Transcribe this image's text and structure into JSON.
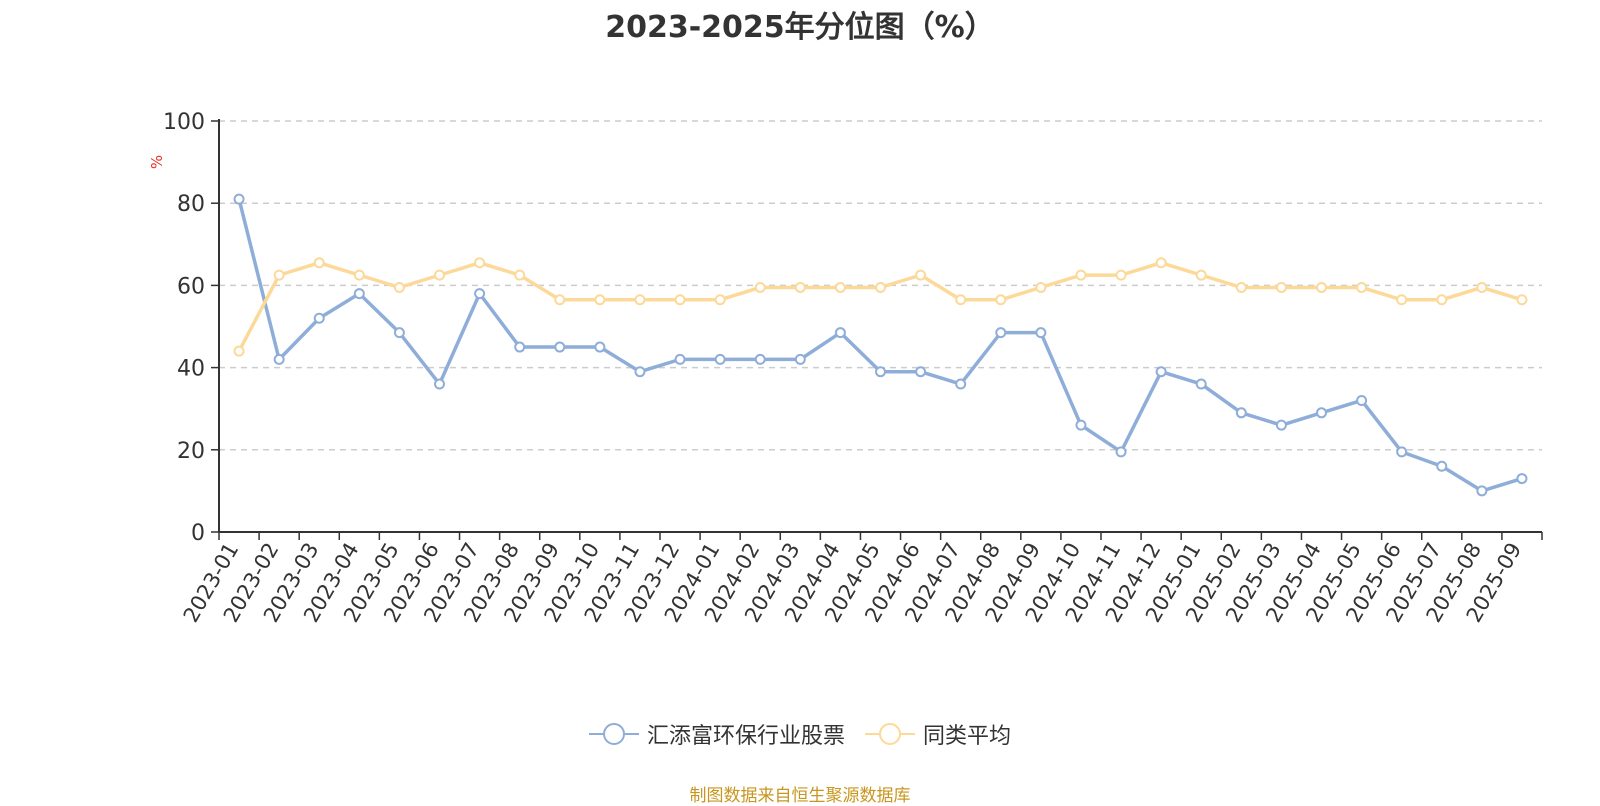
{
  "chart_data": {
    "type": "line",
    "title": "2023-2025年分位图（%）",
    "ylabel": "%",
    "ylim": [
      0,
      100
    ],
    "yticks": [
      0,
      20,
      40,
      60,
      80,
      100
    ],
    "grid": true,
    "legend_position": "bottom",
    "categories": [
      "2023-01",
      "2023-02",
      "2023-03",
      "2023-04",
      "2023-05",
      "2023-06",
      "2023-07",
      "2023-08",
      "2023-09",
      "2023-10",
      "2023-11",
      "2023-12",
      "2024-01",
      "2024-02",
      "2024-03",
      "2024-04",
      "2024-05",
      "2024-06",
      "2024-07",
      "2024-08",
      "2024-09",
      "2024-10",
      "2024-11",
      "2024-12",
      "2025-01",
      "2025-02",
      "2025-03",
      "2025-04",
      "2025-05",
      "2025-06",
      "2025-07",
      "2025-08",
      "2025-09"
    ],
    "series": [
      {
        "name": "汇添富环保行业股票",
        "color": "#8eadd9",
        "values": [
          81,
          42,
          52,
          58,
          48.5,
          36,
          58,
          45,
          45,
          45,
          39,
          42,
          42,
          42,
          42,
          48.5,
          39,
          39,
          36,
          48.5,
          48.5,
          26,
          19.5,
          39,
          36,
          29,
          26,
          29,
          32,
          19.5,
          16,
          10,
          13
        ]
      },
      {
        "name": "同类平均",
        "color": "#fcd998",
        "values": [
          44,
          62.5,
          65.5,
          62.5,
          59.5,
          62.5,
          65.5,
          62.5,
          56.5,
          56.5,
          56.5,
          56.5,
          56.5,
          59.5,
          59.5,
          59.5,
          59.5,
          62.5,
          56.5,
          56.5,
          59.5,
          62.5,
          62.5,
          65.5,
          62.5,
          59.5,
          59.5,
          59.5,
          59.5,
          56.5,
          56.5,
          59.5,
          56.5
        ]
      }
    ]
  },
  "source_note": "制图数据来自恒生聚源数据库"
}
